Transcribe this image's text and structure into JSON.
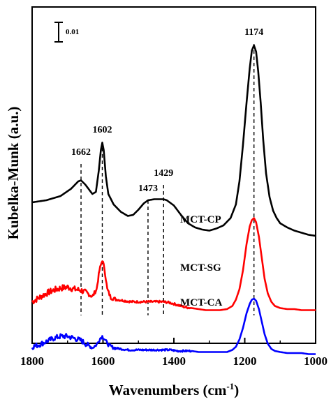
{
  "chart_data": {
    "type": "line",
    "xlabel": "Wavenumbers (cm",
    "xlabel_sup": "-1",
    "xlabel_end": ")",
    "ylabel": "Kubelka-Munk (a.u.)",
    "xlim": [
      1800,
      1000
    ],
    "x_reversed": true,
    "y_ticks": "none",
    "x_ticks": [
      {
        "value": 1800,
        "label": "1800"
      },
      {
        "value": 1600,
        "label": "1600"
      },
      {
        "value": 1400,
        "label": "1400"
      },
      {
        "value": 1200,
        "label": "1200"
      },
      {
        "value": 1000,
        "label": "1000"
      }
    ],
    "scale_bar": {
      "label": "0.01"
    },
    "peak_markers": [
      {
        "x": 1662,
        "label": "1662"
      },
      {
        "x": 1602,
        "label": "1602"
      },
      {
        "x": 1473,
        "label": "1473"
      },
      {
        "x": 1429,
        "label": "1429"
      },
      {
        "x": 1174,
        "label": "1174"
      }
    ],
    "series": [
      {
        "name": "MCT-CP",
        "color": "#000000",
        "points": [
          [
            1800,
            0.0
          ],
          [
            1760,
            0.02
          ],
          [
            1720,
            0.06
          ],
          [
            1690,
            0.13
          ],
          [
            1670,
            0.2
          ],
          [
            1662,
            0.21
          ],
          [
            1650,
            0.17
          ],
          [
            1630,
            0.08
          ],
          [
            1620,
            0.1
          ],
          [
            1612,
            0.3
          ],
          [
            1606,
            0.5
          ],
          [
            1602,
            0.57
          ],
          [
            1598,
            0.5
          ],
          [
            1592,
            0.25
          ],
          [
            1585,
            0.08
          ],
          [
            1570,
            -0.02
          ],
          [
            1550,
            -0.09
          ],
          [
            1530,
            -0.13
          ],
          [
            1515,
            -0.12
          ],
          [
            1500,
            -0.07
          ],
          [
            1485,
            -0.01
          ],
          [
            1473,
            0.02
          ],
          [
            1455,
            0.03
          ],
          [
            1440,
            0.03
          ],
          [
            1429,
            0.03
          ],
          [
            1420,
            0.02
          ],
          [
            1400,
            -0.03
          ],
          [
            1380,
            -0.12
          ],
          [
            1360,
            -0.2
          ],
          [
            1340,
            -0.24
          ],
          [
            1320,
            -0.26
          ],
          [
            1300,
            -0.27
          ],
          [
            1280,
            -0.25
          ],
          [
            1260,
            -0.22
          ],
          [
            1240,
            -0.15
          ],
          [
            1225,
            -0.02
          ],
          [
            1215,
            0.2
          ],
          [
            1205,
            0.55
          ],
          [
            1195,
            0.95
          ],
          [
            1186,
            1.28
          ],
          [
            1180,
            1.45
          ],
          [
            1174,
            1.5
          ],
          [
            1168,
            1.44
          ],
          [
            1162,
            1.25
          ],
          [
            1155,
            0.95
          ],
          [
            1148,
            0.6
          ],
          [
            1140,
            0.28
          ],
          [
            1130,
            0.05
          ],
          [
            1120,
            -0.08
          ],
          [
            1110,
            -0.15
          ],
          [
            1100,
            -0.2
          ],
          [
            1080,
            -0.24
          ],
          [
            1060,
            -0.27
          ],
          [
            1040,
            -0.29
          ],
          [
            1020,
            -0.31
          ],
          [
            1000,
            -0.32
          ]
        ]
      },
      {
        "name": "MCT-SG",
        "color": "#ff0000",
        "points": [
          [
            1800,
            0.0
          ],
          [
            1780,
            0.04
          ],
          [
            1760,
            0.08
          ],
          [
            1740,
            0.11
          ],
          [
            1720,
            0.13
          ],
          [
            1700,
            0.14
          ],
          [
            1680,
            0.12
          ],
          [
            1662,
            0.11
          ],
          [
            1645,
            0.08
          ],
          [
            1630,
            0.05
          ],
          [
            1618,
            0.12
          ],
          [
            1610,
            0.3
          ],
          [
            1602,
            0.4
          ],
          [
            1596,
            0.32
          ],
          [
            1588,
            0.12
          ],
          [
            1578,
            0.04
          ],
          [
            1560,
            0.02
          ],
          [
            1540,
            0.01
          ],
          [
            1520,
            0.0
          ],
          [
            1500,
            0.0
          ],
          [
            1473,
            0.0
          ],
          [
            1450,
            0.0
          ],
          [
            1429,
            0.0
          ],
          [
            1410,
            -0.01
          ],
          [
            1390,
            -0.03
          ],
          [
            1370,
            -0.05
          ],
          [
            1350,
            -0.06
          ],
          [
            1330,
            -0.07
          ],
          [
            1310,
            -0.08
          ],
          [
            1290,
            -0.08
          ],
          [
            1270,
            -0.08
          ],
          [
            1250,
            -0.07
          ],
          [
            1235,
            -0.04
          ],
          [
            1225,
            0.02
          ],
          [
            1215,
            0.12
          ],
          [
            1205,
            0.3
          ],
          [
            1195,
            0.55
          ],
          [
            1186,
            0.72
          ],
          [
            1180,
            0.78
          ],
          [
            1174,
            0.8
          ],
          [
            1168,
            0.76
          ],
          [
            1160,
            0.62
          ],
          [
            1152,
            0.42
          ],
          [
            1144,
            0.22
          ],
          [
            1135,
            0.08
          ],
          [
            1125,
            0.0
          ],
          [
            1115,
            -0.04
          ],
          [
            1100,
            -0.06
          ],
          [
            1080,
            -0.07
          ],
          [
            1060,
            -0.07
          ],
          [
            1040,
            -0.08
          ],
          [
            1020,
            -0.08
          ],
          [
            1000,
            -0.08
          ]
        ]
      },
      {
        "name": "MCT-CA",
        "color": "#0000ff",
        "points": [
          [
            1800,
            0.0
          ],
          [
            1780,
            0.02
          ],
          [
            1760,
            0.05
          ],
          [
            1740,
            0.08
          ],
          [
            1720,
            0.1
          ],
          [
            1700,
            0.1
          ],
          [
            1680,
            0.08
          ],
          [
            1662,
            0.06
          ],
          [
            1645,
            0.02
          ],
          [
            1630,
            -0.01
          ],
          [
            1618,
            0.02
          ],
          [
            1608,
            0.08
          ],
          [
            1602,
            0.1
          ],
          [
            1595,
            0.07
          ],
          [
            1585,
            0.02
          ],
          [
            1570,
            -0.01
          ],
          [
            1550,
            -0.02
          ],
          [
            1530,
            -0.03
          ],
          [
            1510,
            -0.03
          ],
          [
            1490,
            -0.03
          ],
          [
            1473,
            -0.03
          ],
          [
            1450,
            -0.03
          ],
          [
            1429,
            -0.03
          ],
          [
            1410,
            -0.03
          ],
          [
            1390,
            -0.04
          ],
          [
            1370,
            -0.04
          ],
          [
            1350,
            -0.04
          ],
          [
            1330,
            -0.05
          ],
          [
            1310,
            -0.05
          ],
          [
            1290,
            -0.05
          ],
          [
            1270,
            -0.05
          ],
          [
            1250,
            -0.05
          ],
          [
            1235,
            -0.03
          ],
          [
            1225,
            0.0
          ],
          [
            1215,
            0.07
          ],
          [
            1205,
            0.18
          ],
          [
            1195,
            0.32
          ],
          [
            1186,
            0.41
          ],
          [
            1180,
            0.45
          ],
          [
            1174,
            0.46
          ],
          [
            1168,
            0.44
          ],
          [
            1160,
            0.36
          ],
          [
            1152,
            0.24
          ],
          [
            1144,
            0.12
          ],
          [
            1135,
            0.03
          ],
          [
            1125,
            -0.02
          ],
          [
            1115,
            -0.04
          ],
          [
            1100,
            -0.05
          ],
          [
            1080,
            -0.06
          ],
          [
            1060,
            -0.06
          ],
          [
            1040,
            -0.06
          ],
          [
            1020,
            -0.07
          ],
          [
            1000,
            -0.07
          ]
        ]
      }
    ],
    "series_offsets": {
      "MCT-CP": 0.0,
      "MCT-SG": -0.95,
      "MCT-CA": -1.38
    },
    "noise": {
      "MCT-CP": 0.0,
      "MCT-SG": 0.03,
      "MCT-CA": 0.025
    }
  }
}
